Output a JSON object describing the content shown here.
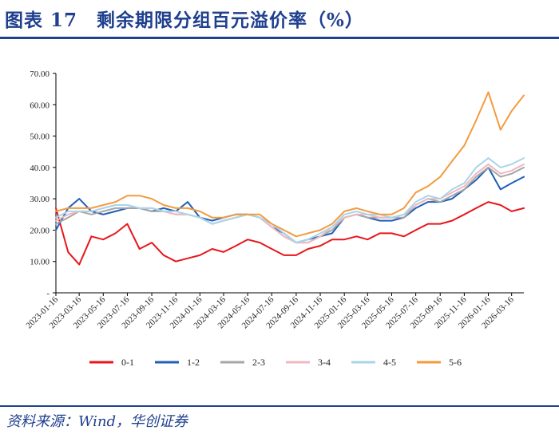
{
  "header": {
    "title": "图表 17　剩余期限分组百元溢价率（%）"
  },
  "footer": {
    "source": "资料来源：Wind，华创证券"
  },
  "chart_data": {
    "type": "line",
    "ylim": [
      0,
      70
    ],
    "y_ticks": [
      "-",
      "10.00",
      "20.00",
      "30.00",
      "40.00",
      "50.00",
      "60.00",
      "70.00"
    ],
    "x_ticks": [
      "2023-01-16",
      "2023-03-16",
      "2023-05-16",
      "2023-07-16",
      "2023-09-16",
      "2023-11-16",
      "2024-01-16",
      "2024-03-16",
      "2024-05-16",
      "2024-07-16",
      "2024-09-16",
      "2024-11-16",
      "2025-01-16",
      "2025-03-16",
      "2025-05-16",
      "2025-07-16",
      "2025-09-16",
      "2025-11-16",
      "2026-01-16",
      "2026-03-16"
    ],
    "x": [
      "2023-01-16",
      "2023-02-16",
      "2023-03-16",
      "2023-04-16",
      "2023-05-16",
      "2023-06-16",
      "2023-07-16",
      "2023-08-16",
      "2023-09-16",
      "2023-10-16",
      "2023-11-16",
      "2023-12-16",
      "2024-01-16",
      "2024-02-16",
      "2024-03-16",
      "2024-04-16",
      "2024-05-16",
      "2024-06-16",
      "2024-07-16",
      "2024-08-16",
      "2024-09-16",
      "2024-10-16",
      "2024-11-16",
      "2024-12-16",
      "2025-01-16",
      "2025-02-16",
      "2025-03-16",
      "2025-04-16",
      "2025-05-16",
      "2025-06-16",
      "2025-07-16",
      "2025-08-16",
      "2025-09-16",
      "2025-10-16",
      "2025-11-16",
      "2025-12-16",
      "2026-01-16",
      "2026-02-16",
      "2026-03-16",
      "2026-04-16"
    ],
    "legend_position": "bottom",
    "series": [
      {
        "name": "0-1",
        "color": "#e8161c",
        "values": [
          27,
          13,
          9,
          18,
          17,
          19,
          22,
          14,
          16,
          12,
          10,
          11,
          12,
          14,
          13,
          15,
          17,
          16,
          14,
          12,
          12,
          14,
          15,
          17,
          17,
          18,
          17,
          19,
          19,
          18,
          20,
          22,
          22,
          23,
          25,
          27,
          29,
          28,
          26,
          27
        ]
      },
      {
        "name": "1-2",
        "color": "#1f5fb8",
        "values": [
          20,
          27,
          30,
          26,
          25,
          26,
          27,
          27,
          26,
          27,
          26,
          29,
          24,
          23,
          24,
          25,
          25,
          24,
          21,
          19,
          16,
          17,
          18,
          19,
          24,
          25,
          24,
          23,
          23,
          24,
          27,
          29,
          29,
          30,
          33,
          36,
          40,
          33,
          35,
          37
        ]
      },
      {
        "name": "2-3",
        "color": "#a6a6a6",
        "values": [
          22,
          24,
          26,
          25,
          26,
          27,
          27,
          27,
          26,
          26,
          25,
          25,
          24,
          22,
          23,
          24,
          25,
          24,
          21,
          18,
          16,
          16,
          18,
          20,
          24,
          25,
          24,
          24,
          24,
          24,
          28,
          30,
          29,
          31,
          33,
          37,
          40,
          37,
          38,
          40
        ]
      },
      {
        "name": "3-4",
        "color": "#f0b8c0",
        "values": [
          23,
          25,
          26,
          26,
          27,
          28,
          28,
          27,
          27,
          26,
          25,
          25,
          24,
          22,
          23,
          24,
          25,
          24,
          21,
          18,
          16,
          16,
          18,
          21,
          24,
          25,
          25,
          24,
          24,
          25,
          28,
          30,
          30,
          32,
          34,
          38,
          41,
          38,
          39,
          41
        ]
      },
      {
        "name": "4-5",
        "color": "#a9d5ea",
        "values": [
          24,
          26,
          26,
          26,
          27,
          28,
          28,
          27,
          27,
          26,
          26,
          25,
          24,
          22,
          23,
          24,
          25,
          24,
          22,
          19,
          16,
          17,
          19,
          21,
          25,
          26,
          25,
          25,
          24,
          25,
          29,
          31,
          30,
          33,
          35,
          40,
          43,
          40,
          41,
          43
        ]
      },
      {
        "name": "5-6",
        "color": "#f39b3f",
        "values": [
          26,
          27,
          27,
          27,
          28,
          29,
          31,
          31,
          30,
          28,
          27,
          27,
          26,
          24,
          24,
          25,
          25,
          25,
          22,
          20,
          18,
          19,
          20,
          22,
          26,
          27,
          26,
          25,
          25,
          27,
          32,
          34,
          37,
          42,
          47,
          55,
          64,
          52,
          58,
          63
        ]
      }
    ]
  }
}
